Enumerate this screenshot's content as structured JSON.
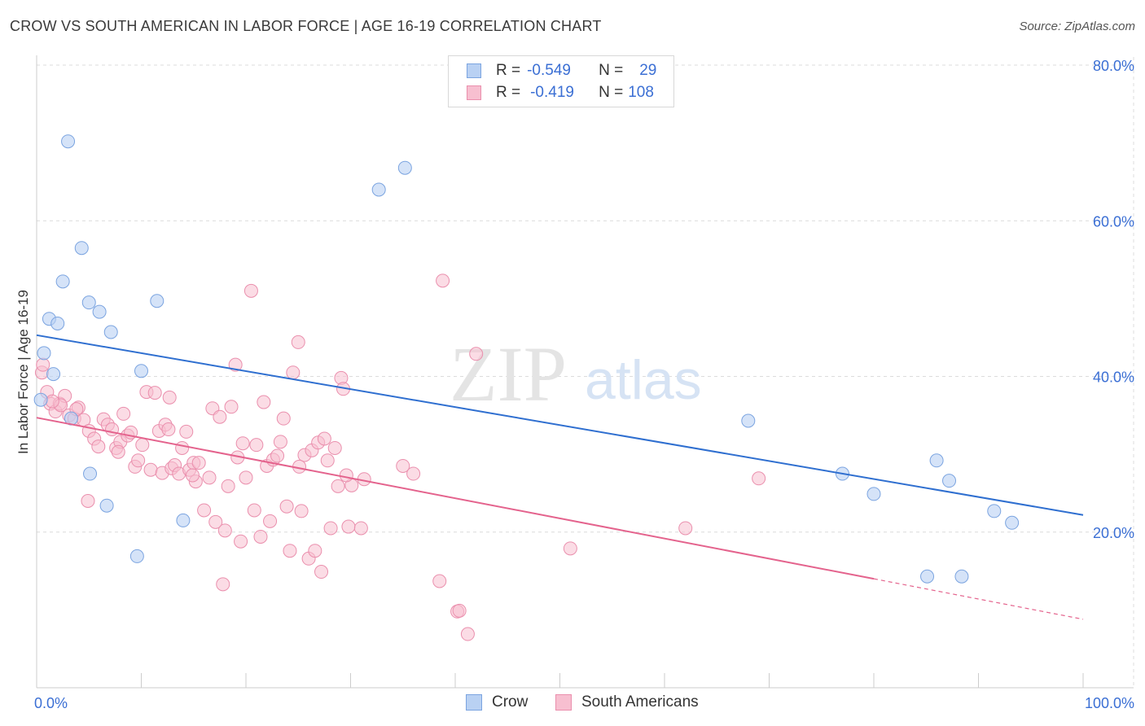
{
  "title": "CROW VS SOUTH AMERICAN IN LABOR FORCE | AGE 16-19 CORRELATION CHART",
  "source": "Source: ZipAtlas.com",
  "watermark": {
    "zip": "ZIP",
    "atlas": "atlas"
  },
  "legend": {
    "rows": [
      {
        "r_label": "R =",
        "r_value": "-0.549",
        "n_label": "N =",
        "n_value": "29"
      },
      {
        "r_label": "R =",
        "r_value": "-0.419",
        "n_label": "N =",
        "n_value": "108"
      }
    ]
  },
  "bottom_legend": {
    "series1": "Crow",
    "series2": "South Americans"
  },
  "colors": {
    "crow_fill": "#b9d1f3",
    "crow_stroke": "#7ba4e0",
    "crow_line": "#2f6fd0",
    "sa_fill": "#f7bfd0",
    "sa_stroke": "#ea8fad",
    "sa_line": "#e4638d",
    "axis_text": "#3b6fd4",
    "grid": "#dcdcdc"
  },
  "chart_data": {
    "type": "scatter",
    "title": "CROW VS SOUTH AMERICAN IN LABOR FORCE | AGE 16-19 CORRELATION CHART",
    "xlabel": "",
    "ylabel": "In Labor Force | Age 16-19",
    "xlim": [
      0,
      100
    ],
    "ylim": [
      0,
      80
    ],
    "x_tick_labels": [
      "0.0%",
      "100.0%"
    ],
    "y_ticks": [
      20,
      40,
      60,
      80
    ],
    "y_tick_labels": [
      "20.0%",
      "40.0%",
      "60.0%",
      "80.0%"
    ],
    "series": [
      {
        "name": "Crow",
        "trend": {
          "x0": 0,
          "y0": 45.3,
          "x1": 100,
          "y1": 22.2
        },
        "points": [
          [
            3.0,
            70.2
          ],
          [
            4.3,
            56.5
          ],
          [
            2.5,
            52.2
          ],
          [
            5.0,
            49.5
          ],
          [
            11.5,
            49.7
          ],
          [
            6.0,
            48.3
          ],
          [
            1.2,
            47.4
          ],
          [
            2.0,
            46.8
          ],
          [
            7.1,
            45.7
          ],
          [
            10.0,
            40.7
          ],
          [
            1.6,
            40.3
          ],
          [
            0.4,
            37.0
          ],
          [
            3.3,
            34.6
          ],
          [
            5.1,
            27.5
          ],
          [
            6.7,
            23.4
          ],
          [
            14.0,
            21.5
          ],
          [
            9.6,
            16.9
          ],
          [
            32.7,
            64.0
          ],
          [
            35.2,
            66.8
          ],
          [
            68.0,
            34.3
          ],
          [
            77.0,
            27.5
          ],
          [
            80.0,
            24.9
          ],
          [
            86.0,
            29.2
          ],
          [
            87.2,
            26.6
          ],
          [
            91.5,
            22.7
          ],
          [
            93.2,
            21.2
          ],
          [
            85.1,
            14.3
          ],
          [
            88.4,
            14.3
          ],
          [
            0.7,
            43.0
          ]
        ]
      },
      {
        "name": "South Americans",
        "trend": {
          "x0": 0,
          "y0": 34.7,
          "x1": 80,
          "y1": 14.0,
          "dash_x1": 100,
          "dash_y1": 8.8
        },
        "points": [
          [
            0.5,
            40.5
          ],
          [
            0.6,
            41.5
          ],
          [
            1.0,
            38.0
          ],
          [
            1.3,
            36.5
          ],
          [
            1.8,
            35.5
          ],
          [
            2.2,
            36.5
          ],
          [
            2.7,
            37.5
          ],
          [
            3.1,
            35.0
          ],
          [
            3.6,
            34.6
          ],
          [
            4.0,
            36.0
          ],
          [
            4.5,
            34.4
          ],
          [
            5.0,
            33.0
          ],
          [
            5.5,
            32.0
          ],
          [
            5.9,
            31.0
          ],
          [
            6.4,
            34.5
          ],
          [
            6.8,
            33.8
          ],
          [
            7.2,
            33.2
          ],
          [
            7.6,
            30.8
          ],
          [
            8.0,
            31.6
          ],
          [
            8.3,
            35.2
          ],
          [
            8.7,
            32.4
          ],
          [
            9.0,
            32.8
          ],
          [
            9.4,
            28.4
          ],
          [
            9.7,
            29.2
          ],
          [
            10.1,
            31.2
          ],
          [
            10.5,
            38.0
          ],
          [
            10.9,
            28.0
          ],
          [
            11.3,
            37.9
          ],
          [
            11.7,
            33.0
          ],
          [
            12.0,
            27.6
          ],
          [
            12.3,
            33.8
          ],
          [
            12.6,
            33.2
          ],
          [
            12.9,
            28.2
          ],
          [
            13.2,
            28.6
          ],
          [
            13.6,
            27.5
          ],
          [
            13.9,
            30.8
          ],
          [
            14.3,
            32.9
          ],
          [
            14.6,
            28.0
          ],
          [
            15.0,
            28.9
          ],
          [
            15.2,
            26.5
          ],
          [
            15.5,
            28.9
          ],
          [
            16.0,
            22.8
          ],
          [
            16.5,
            27.0
          ],
          [
            16.8,
            35.9
          ],
          [
            17.1,
            21.3
          ],
          [
            17.5,
            34.8
          ],
          [
            17.8,
            13.3
          ],
          [
            18.3,
            25.9
          ],
          [
            18.6,
            36.1
          ],
          [
            19.0,
            41.5
          ],
          [
            19.2,
            29.6
          ],
          [
            19.5,
            18.8
          ],
          [
            19.7,
            31.4
          ],
          [
            20.0,
            27.0
          ],
          [
            20.5,
            51.0
          ],
          [
            20.8,
            22.8
          ],
          [
            21.0,
            31.2
          ],
          [
            21.4,
            19.4
          ],
          [
            21.7,
            36.7
          ],
          [
            22.0,
            28.5
          ],
          [
            22.3,
            21.4
          ],
          [
            22.6,
            29.3
          ],
          [
            23.0,
            29.8
          ],
          [
            23.3,
            31.6
          ],
          [
            23.6,
            34.6
          ],
          [
            23.9,
            23.3
          ],
          [
            24.2,
            17.6
          ],
          [
            24.5,
            40.5
          ],
          [
            25.0,
            44.4
          ],
          [
            25.3,
            22.7
          ],
          [
            25.6,
            29.9
          ],
          [
            26.0,
            16.6
          ],
          [
            26.3,
            30.5
          ],
          [
            26.6,
            17.6
          ],
          [
            26.9,
            31.5
          ],
          [
            27.2,
            14.9
          ],
          [
            27.5,
            32.0
          ],
          [
            27.8,
            29.2
          ],
          [
            28.1,
            20.5
          ],
          [
            28.5,
            30.8
          ],
          [
            28.8,
            25.9
          ],
          [
            29.1,
            39.8
          ],
          [
            29.3,
            38.4
          ],
          [
            29.8,
            20.7
          ],
          [
            30.1,
            26.0
          ],
          [
            31.0,
            20.5
          ],
          [
            31.3,
            26.8
          ],
          [
            35.0,
            28.5
          ],
          [
            36.0,
            27.5
          ],
          [
            38.5,
            13.7
          ],
          [
            38.8,
            52.3
          ],
          [
            40.2,
            9.8
          ],
          [
            40.4,
            9.9
          ],
          [
            41.2,
            6.9
          ],
          [
            42.0,
            42.9
          ],
          [
            51.0,
            17.9
          ],
          [
            69.0,
            26.9
          ],
          [
            62.0,
            20.5
          ],
          [
            2.3,
            36.3
          ],
          [
            3.8,
            35.8
          ],
          [
            1.5,
            36.8
          ],
          [
            7.8,
            30.3
          ],
          [
            14.9,
            27.3
          ],
          [
            18.0,
            20.2
          ],
          [
            12.7,
            37.3
          ],
          [
            4.9,
            24.0
          ],
          [
            25.1,
            28.4
          ],
          [
            29.6,
            27.3
          ]
        ]
      }
    ]
  }
}
